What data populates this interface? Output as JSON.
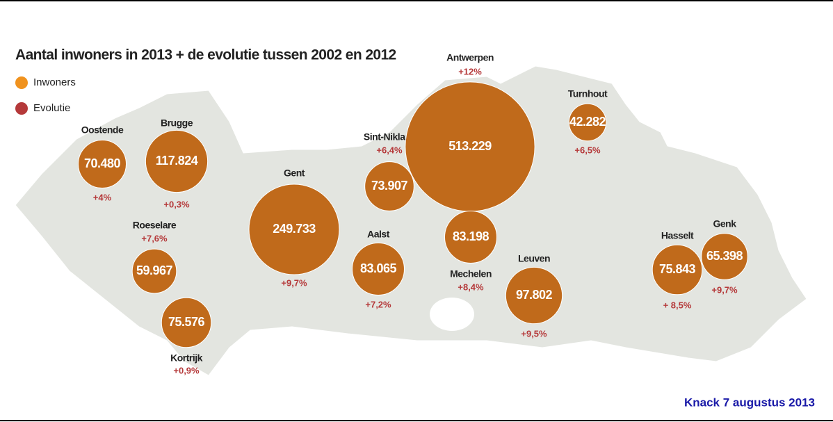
{
  "title": "Aantal inwoners in 2013 + de evolutie tussen 2002 en 2012",
  "legend": [
    {
      "label": "Inwoners",
      "color": "#f0921e"
    },
    {
      "label": "Evolutie",
      "color": "#b5393a"
    }
  ],
  "bubble_color": "#c06a1b",
  "cities": [
    {
      "name": "Oostende",
      "population": {
        "value": 70480,
        "label": "70.480"
      },
      "evolution": "+4%"
    },
    {
      "name": "Brugge",
      "population": {
        "value": 117824,
        "label": "117.824"
      },
      "evolution": "+0,3%"
    },
    {
      "name": "Gent",
      "population": {
        "value": 249733,
        "label": "249.733"
      },
      "evolution": "+9,7%"
    },
    {
      "name": "Sint-Niklaas",
      "population": {
        "value": 73907,
        "label": "73.907"
      },
      "evolution": "+6,4%"
    },
    {
      "name": "Antwerpen",
      "population": {
        "value": 513229,
        "label": "513.229"
      },
      "evolution": "+12%"
    },
    {
      "name": "Turnhout",
      "population": {
        "value": 42282,
        "label": "42.282"
      },
      "evolution": "+6,5%"
    },
    {
      "name": "Roeselare",
      "population": {
        "value": 59967,
        "label": "59.967"
      },
      "evolution": "+7,6%"
    },
    {
      "name": "Kortrijk",
      "population": {
        "value": 75576,
        "label": "75.576"
      },
      "evolution": "+0,9%"
    },
    {
      "name": "Aalst",
      "population": {
        "value": 83065,
        "label": "83.065"
      },
      "evolution": "+7,2%"
    },
    {
      "name": "Mechelen",
      "population": {
        "value": 83198,
        "label": "83.198"
      },
      "evolution": "+8,4%"
    },
    {
      "name": "Leuven",
      "population": {
        "value": 97802,
        "label": "97.802"
      },
      "evolution": "+9,5%"
    },
    {
      "name": "Hasselt",
      "population": {
        "value": 75843,
        "label": "75.843"
      },
      "evolution": "+ 8,5%"
    },
    {
      "name": "Genk",
      "population": {
        "value": 65398,
        "label": "65.398"
      },
      "evolution": "+9,7%"
    }
  ],
  "source": "Knack 7 augustus 2013"
}
